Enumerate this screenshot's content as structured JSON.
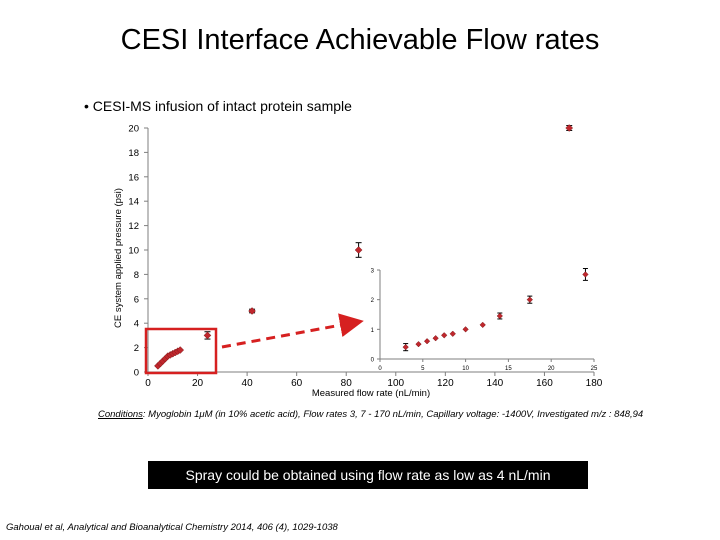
{
  "title": "CESI Interface Achievable Flow rates",
  "bullet": "• CESI-MS infusion of intact protein sample",
  "chart_data": [
    {
      "type": "scatter",
      "title": "",
      "xlabel": "Measured flow rate (nL/min)",
      "ylabel": "CE system applied pressure (psi)",
      "xlim": [
        0,
        180
      ],
      "ylim": [
        0,
        20
      ],
      "xticks": [
        0,
        20,
        40,
        60,
        80,
        100,
        120,
        140,
        160,
        180
      ],
      "yticks": [
        0,
        2,
        4,
        6,
        8,
        10,
        12,
        14,
        16,
        18,
        20
      ],
      "marker_color": "#c0272d",
      "points": [
        {
          "x": 4,
          "y": 0.5,
          "err": 0.1
        },
        {
          "x": 5,
          "y": 0.7,
          "err": 0.1
        },
        {
          "x": 6,
          "y": 0.9,
          "err": 0.1
        },
        {
          "x": 7,
          "y": 1.1,
          "err": 0.1
        },
        {
          "x": 8,
          "y": 1.3,
          "err": 0.1
        },
        {
          "x": 9,
          "y": 1.4,
          "err": 0.1
        },
        {
          "x": 10,
          "y": 1.5,
          "err": 0.1
        },
        {
          "x": 11,
          "y": 1.6,
          "err": 0.1
        },
        {
          "x": 12,
          "y": 1.7,
          "err": 0.1
        },
        {
          "x": 13,
          "y": 1.8,
          "err": 0.1
        },
        {
          "x": 24,
          "y": 3.0,
          "err": 0.3
        },
        {
          "x": 42,
          "y": 5.0,
          "err": 0.15
        },
        {
          "x": 85,
          "y": 10.0,
          "err": 0.6
        },
        {
          "x": 170,
          "y": 20.0,
          "err": 0.2
        }
      ]
    },
    {
      "type": "scatter",
      "title": "inset",
      "xlim": [
        0,
        25
      ],
      "ylim": [
        0,
        3
      ],
      "xticks": [
        0,
        5,
        10,
        15,
        20,
        25
      ],
      "yticks": [
        0,
        1,
        2,
        3
      ],
      "points": [
        {
          "x": 3,
          "y": 0.4,
          "err": 0.12
        },
        {
          "x": 4.5,
          "y": 0.5,
          "err": 0.05
        },
        {
          "x": 5.5,
          "y": 0.6,
          "err": 0.05
        },
        {
          "x": 6.5,
          "y": 0.7,
          "err": 0.05
        },
        {
          "x": 7.5,
          "y": 0.8,
          "err": 0.05
        },
        {
          "x": 8.5,
          "y": 0.85,
          "err": 0.05
        },
        {
          "x": 10,
          "y": 1.0,
          "err": 0.05
        },
        {
          "x": 12,
          "y": 1.15,
          "err": 0.05
        },
        {
          "x": 14,
          "y": 1.45,
          "err": 0.1
        },
        {
          "x": 17.5,
          "y": 2.0,
          "err": 0.12
        },
        {
          "x": 24,
          "y": 2.85,
          "err": 0.2
        }
      ]
    }
  ],
  "conditions_label": "Conditions",
  "conditions_text": ": Myoglobin 1μM (in 10% acetic acid), Flow rates 3, 7 - 170 nL/min, Capillary voltage: -1400V, Investigated m/z : 848,94",
  "callout": "Spray could be obtained using flow rate as low as 4 nL/min",
  "reference": "Gahoual et al, Analytical and Bioanalytical Chemistry 2014, 406 (4), 1029-1038",
  "colors": {
    "marker": "#c0272d",
    "highlight_box": "#d62020",
    "arrow": "#d62020"
  }
}
